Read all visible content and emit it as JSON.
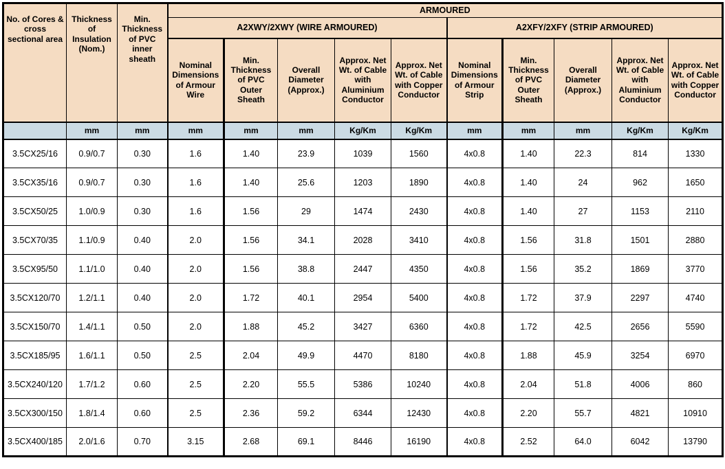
{
  "colors": {
    "header_bg": "#f5dcc2",
    "units_bg": "#cbdbe4",
    "row_bg": "#ffffff",
    "border": "#000000",
    "text": "#000000"
  },
  "table": {
    "banner": "ARMOURED",
    "groups": [
      "A2XWY/2XWY (WIRE ARMOURED)",
      "A2XFY/2XFY (STRIP ARMOURED)"
    ],
    "columns": [
      {
        "label": "No. of Cores & cross sectional area",
        "unit": ""
      },
      {
        "label": "Thickness of Insulation (Nom.)",
        "unit": "mm"
      },
      {
        "label": "Min. Thickness of PVC inner sheath",
        "unit": "mm"
      },
      {
        "label": "Nominal Dimensions of Armour Wire",
        "unit": "mm"
      },
      {
        "label": "Min. Thickness of PVC Outer Sheath",
        "unit": "mm"
      },
      {
        "label": "Overall Diameter (Approx.)",
        "unit": "mm"
      },
      {
        "label": "Approx. Net Wt. of Cable with Aluminium Conductor",
        "unit": "Kg/Km"
      },
      {
        "label": "Approx. Net Wt. of Cable with Copper Conductor",
        "unit": "Kg/Km"
      },
      {
        "label": "Nominal Dimensions of Armour Strip",
        "unit": "mm"
      },
      {
        "label": "Min. Thickness of PVC Outer Sheath",
        "unit": "mm"
      },
      {
        "label": "Overall Diameter (Approx.)",
        "unit": "mm"
      },
      {
        "label": "Approx. Net Wt. of Cable with Aluminium Conductor",
        "unit": "Kg/Km"
      },
      {
        "label": "Approx. Net Wt. of Cable with Copper Conductor",
        "unit": "Kg/Km"
      }
    ],
    "rows": [
      [
        "3.5CX25/16",
        "0.9/0.7",
        "0.30",
        "1.6",
        "1.40",
        "23.9",
        "1039",
        "1560",
        "4x0.8",
        "1.40",
        "22.3",
        "814",
        "1330"
      ],
      [
        "3.5CX35/16",
        "0.9/0.7",
        "0.30",
        "1.6",
        "1.40",
        "25.6",
        "1203",
        "1890",
        "4x0.8",
        "1.40",
        "24",
        "962",
        "1650"
      ],
      [
        "3.5CX50/25",
        "1.0/0.9",
        "0.30",
        "1.6",
        "1.56",
        "29",
        "1474",
        "2430",
        "4x0.8",
        "1.40",
        "27",
        "1153",
        "2110"
      ],
      [
        "3.5CX70/35",
        "1.1/0.9",
        "0.40",
        "2.0",
        "1.56",
        "34.1",
        "2028",
        "3410",
        "4x0.8",
        "1.56",
        "31.8",
        "1501",
        "2880"
      ],
      [
        "3.5CX95/50",
        "1.1/1.0",
        "0.40",
        "2.0",
        "1.56",
        "38.8",
        "2447",
        "4350",
        "4x0.8",
        "1.56",
        "35.2",
        "1869",
        "3770"
      ],
      [
        "3.5CX120/70",
        "1.2/1.1",
        "0.40",
        "2.0",
        "1.72",
        "40.1",
        "2954",
        "5400",
        "4x0.8",
        "1.72",
        "37.9",
        "2297",
        "4740"
      ],
      [
        "3.5CX150/70",
        "1.4/1.1",
        "0.50",
        "2.0",
        "1.88",
        "45.2",
        "3427",
        "6360",
        "4x0.8",
        "1.72",
        "42.5",
        "2656",
        "5590"
      ],
      [
        "3.5CX185/95",
        "1.6/1.1",
        "0.50",
        "2.5",
        "2.04",
        "49.9",
        "4470",
        "8180",
        "4x0.8",
        "1.88",
        "45.9",
        "3254",
        "6970"
      ],
      [
        "3.5CX240/120",
        "1.7/1.2",
        "0.60",
        "2.5",
        "2.20",
        "55.5",
        "5386",
        "10240",
        "4x0.8",
        "2.04",
        "51.8",
        "4006",
        "860"
      ],
      [
        "3.5CX300/150",
        "1.8/1.4",
        "0.60",
        "2.5",
        "2.36",
        "59.2",
        "6344",
        "12430",
        "4x0.8",
        "2.20",
        "55.7",
        "4821",
        "10910"
      ],
      [
        "3.5CX400/185",
        "2.0/1.6",
        "0.70",
        "3.15",
        "2.68",
        "69.1",
        "8446",
        "16190",
        "4x0.8",
        "2.52",
        "64.0",
        "6042",
        "13790"
      ]
    ]
  }
}
